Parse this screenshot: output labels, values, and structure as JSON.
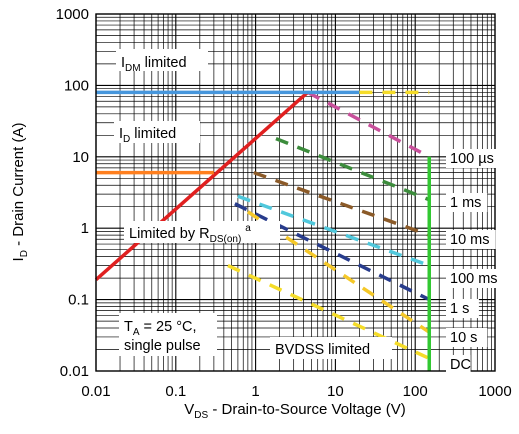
{
  "chart_data": {
    "type": "line",
    "xlabel": {
      "main": "V",
      "sub": "DS",
      "rest": " - Drain-to-Source Voltage (V)"
    },
    "ylabel": {
      "main": "I",
      "sub": "D",
      "rest": " - Drain Current (A)"
    },
    "x_scale": "log",
    "y_scale": "log",
    "xlim": [
      0.01,
      1000
    ],
    "ylim": [
      0.01,
      1000
    ],
    "x_ticks": [
      0.01,
      0.1,
      1,
      10,
      100,
      1000
    ],
    "y_ticks": [
      0.01,
      0.1,
      1,
      10,
      100,
      1000
    ],
    "x_tick_labels": [
      "0.01",
      "0.1",
      "1",
      "10",
      "100",
      "1000"
    ],
    "y_tick_labels": [
      "0.01",
      "0.1",
      "1",
      "10",
      "100",
      "1000"
    ],
    "grid": true,
    "annotations": {
      "idm": {
        "main": "I",
        "sub": "DM",
        "rest": " limited"
      },
      "id": {
        "main": "I",
        "sub": "D",
        "rest": " limited"
      },
      "rds": {
        "main": "Limited by R",
        "sub": "DS(on)",
        "sup": "a"
      },
      "ta": {
        "main": "T",
        "sub": "A",
        "rest": " = 25 °C,"
      },
      "pulse": "single pulse",
      "bvdss": "BVDSS limited"
    },
    "series": [
      {
        "name": "100 µs",
        "color": "#c8509b",
        "points": [
          [
            4.5,
            80
          ],
          [
            150,
            10
          ]
        ]
      },
      {
        "name": "1 ms",
        "color": "#3c8c3c",
        "points": [
          [
            1.8,
            18
          ],
          [
            150,
            2.5
          ]
        ]
      },
      {
        "name": "10 ms",
        "color": "#8b5a28",
        "points": [
          [
            0.95,
            6
          ],
          [
            150,
            0.8
          ]
        ]
      },
      {
        "name": "100 ms",
        "color": "#50c8dc",
        "points": [
          [
            0.6,
            2.8
          ],
          [
            150,
            0.3
          ]
        ]
      },
      {
        "name": "1 s",
        "color": "#283c8c",
        "points": [
          [
            0.55,
            2.2
          ],
          [
            150,
            0.1
          ]
        ]
      },
      {
        "name": "10 s",
        "color": "#f5c828",
        "points": [
          [
            0.8,
            1.7
          ],
          [
            150,
            0.035
          ]
        ]
      },
      {
        "name": "DC",
        "color": "#f5dc28",
        "points": [
          [
            0.45,
            0.3
          ],
          [
            150,
            0.015
          ]
        ]
      }
    ],
    "limit_lines": [
      {
        "id": "rds-on",
        "color": "#e02020",
        "points": [
          [
            0.01,
            0.19
          ],
          [
            4.5,
            80
          ]
        ]
      },
      {
        "id": "idm",
        "color": "#4696dc",
        "points": [
          [
            0.01,
            80
          ],
          [
            20,
            80
          ]
        ]
      },
      {
        "id": "idm-ext",
        "color": "#f5dc28",
        "points": [
          [
            20,
            80
          ],
          [
            150,
            80
          ]
        ],
        "dashed": true
      },
      {
        "id": "id",
        "color": "#ff7f1e",
        "points": [
          [
            0.01,
            6
          ],
          [
            0.3,
            6
          ]
        ]
      },
      {
        "id": "bvdss",
        "color": "#32c832",
        "points": [
          [
            150,
            0.01
          ],
          [
            150,
            10
          ]
        ]
      }
    ]
  }
}
